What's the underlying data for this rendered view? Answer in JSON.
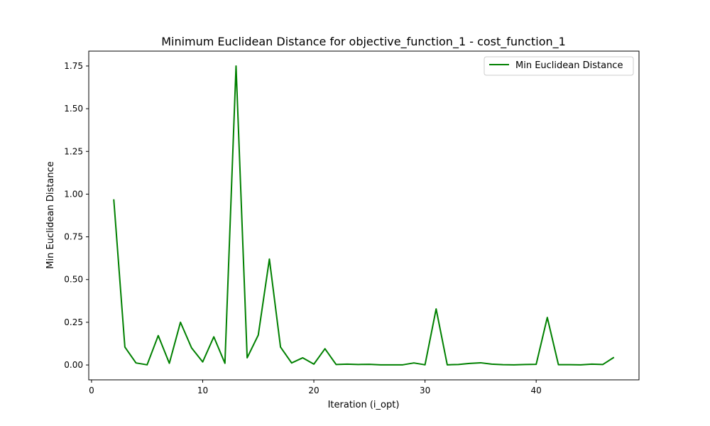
{
  "chart_data": {
    "type": "line",
    "title": "Minimum Euclidean Distance for objective_function_1 - cost_function_1",
    "xlabel": "Iteration (i_opt)",
    "ylabel": "Min Euclidean Distance",
    "xlim": [
      -0.25,
      49.25
    ],
    "ylim": [
      -0.087,
      1.837
    ],
    "xticks": [
      0,
      10,
      20,
      30,
      40
    ],
    "yticks": [
      0.0,
      0.25,
      0.5,
      0.75,
      1.0,
      1.25,
      1.5,
      1.75
    ],
    "ytick_labels": [
      "0.00",
      "0.25",
      "0.50",
      "0.75",
      "1.00",
      "1.25",
      "1.50",
      "1.75"
    ],
    "legend": {
      "position": "upper right"
    },
    "grid": false,
    "series": [
      {
        "name": "Min Euclidean Distance",
        "color": "#008000",
        "x": [
          2,
          3,
          4,
          5,
          6,
          7,
          8,
          9,
          10,
          11,
          12,
          13,
          14,
          15,
          16,
          17,
          18,
          19,
          20,
          21,
          22,
          23,
          24,
          25,
          26,
          27,
          28,
          29,
          30,
          31,
          32,
          33,
          34,
          35,
          36,
          37,
          38,
          39,
          40,
          41,
          42,
          43,
          44,
          45,
          46,
          47
        ],
        "y": [
          0.97,
          0.105,
          0.012,
          0.001,
          0.172,
          0.01,
          0.25,
          0.1,
          0.018,
          0.165,
          0.01,
          1.75,
          0.042,
          0.175,
          0.62,
          0.105,
          0.012,
          0.042,
          0.005,
          0.095,
          0.003,
          0.005,
          0.003,
          0.004,
          0.001,
          0.001,
          0.001,
          0.012,
          0.001,
          0.328,
          0.001,
          0.003,
          0.009,
          0.013,
          0.005,
          0.002,
          0.001,
          0.003,
          0.004,
          0.278,
          0.002,
          0.002,
          0.001,
          0.005,
          0.003,
          0.045
        ]
      }
    ]
  }
}
